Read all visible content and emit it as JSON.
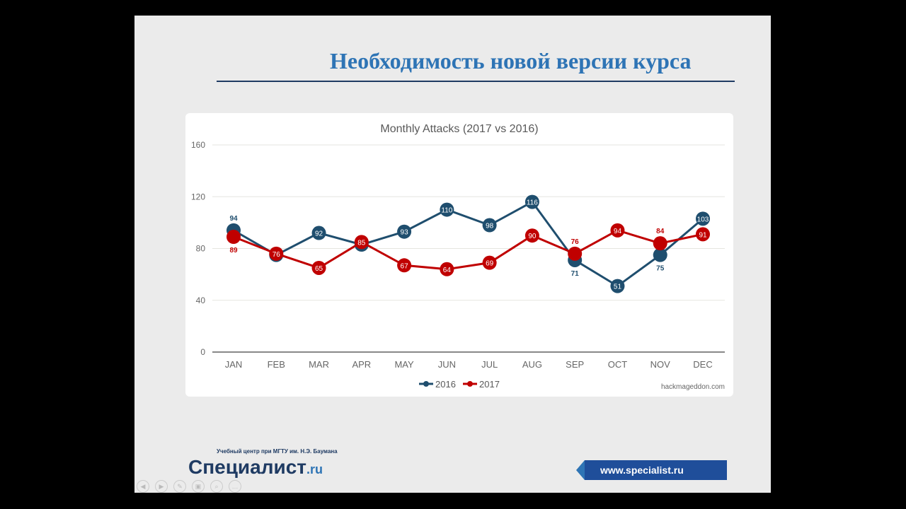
{
  "slide": {
    "title": "Необходимость новой версии курса",
    "logo_subtitle": "Учебный центр при МГТУ им. Н.Э. Баумана",
    "logo_main": "Специалист",
    "logo_suffix": ".ru",
    "url": "www.specialist.ru"
  },
  "chart_data": {
    "type": "line",
    "title": "Monthly Attacks (2017 vs 2016)",
    "categories": [
      "JAN",
      "FEB",
      "MAR",
      "APR",
      "MAY",
      "JUN",
      "JUL",
      "AUG",
      "SEP",
      "OCT",
      "NOV",
      "DEC"
    ],
    "series": [
      {
        "name": "2016",
        "color": "#1f4e6e",
        "values": [
          94,
          75,
          92,
          83,
          93,
          110,
          98,
          116,
          71,
          51,
          75,
          103
        ]
      },
      {
        "name": "2017",
        "color": "#c00000",
        "values": [
          89,
          76,
          65,
          85,
          67,
          64,
          69,
          90,
          76,
          94,
          84,
          91
        ]
      }
    ],
    "yticks": [
      0,
      40,
      80,
      120,
      160
    ],
    "ylim": [
      0,
      160
    ],
    "grid": true,
    "legend": "bottom",
    "source": "hackmageddon.com",
    "labels_shown": {
      "2016": [
        94,
        null,
        92,
        null,
        93,
        110,
        98,
        116,
        71,
        51,
        75,
        103
      ],
      "2017": [
        89,
        76,
        65,
        85,
        67,
        64,
        69,
        90,
        76,
        94,
        84,
        91
      ]
    }
  }
}
